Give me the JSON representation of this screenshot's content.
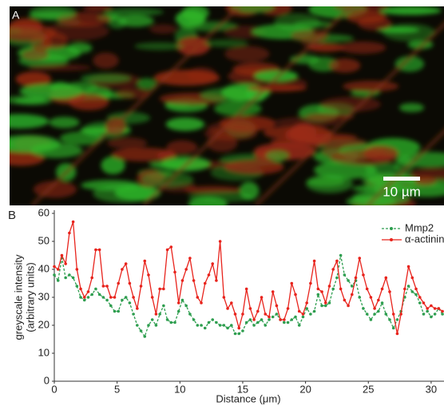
{
  "panel_a": {
    "label": "A",
    "scale_bar": "10 µm"
  },
  "panel_b": {
    "label": "B"
  },
  "chart_data": {
    "type": "line",
    "xlabel": "Distance (μm)",
    "ylabel": [
      "greyscale intensity",
      "(arbitrary units)"
    ],
    "x": [
      0,
      0.3,
      0.6,
      0.9,
      1.2,
      1.5,
      1.8,
      2.1,
      2.4,
      2.7,
      3,
      3.3,
      3.6,
      3.9,
      4.2,
      4.5,
      4.8,
      5.1,
      5.4,
      5.7,
      6,
      6.3,
      6.6,
      6.9,
      7.2,
      7.5,
      7.8,
      8.1,
      8.4,
      8.7,
      9,
      9.3,
      9.6,
      9.9,
      10.2,
      10.5,
      10.8,
      11.1,
      11.4,
      11.7,
      12,
      12.3,
      12.6,
      12.9,
      13.2,
      13.5,
      13.8,
      14.1,
      14.4,
      14.7,
      15,
      15.3,
      15.6,
      15.9,
      16.2,
      16.5,
      16.8,
      17.1,
      17.4,
      17.7,
      18,
      18.3,
      18.6,
      18.9,
      19.2,
      19.5,
      19.8,
      20.1,
      20.4,
      20.7,
      21,
      21.3,
      21.6,
      21.9,
      22.2,
      22.5,
      22.8,
      23.1,
      23.4,
      23.7,
      24,
      24.3,
      24.6,
      24.9,
      25.2,
      25.5,
      25.8,
      26.1,
      26.4,
      26.7,
      27,
      27.3,
      27.6,
      27.9,
      28.2,
      28.5,
      28.8,
      29.1,
      29.4,
      29.7,
      30,
      30.3,
      30.6,
      30.9
    ],
    "series": [
      {
        "name": "Mmp2",
        "color": "#2e9e4f",
        "dashed": true,
        "values": [
          38,
          36,
          44,
          37,
          38,
          37,
          34,
          30,
          29,
          30,
          31,
          33,
          31,
          30,
          29,
          27,
          25,
          25,
          29,
          30,
          28,
          24,
          20,
          18,
          16,
          20,
          22,
          20,
          24,
          27,
          22,
          21,
          21,
          25,
          29,
          27,
          24,
          22,
          20,
          20,
          19,
          21,
          22,
          21,
          20,
          20,
          19,
          20,
          17,
          17,
          18,
          21,
          22,
          20,
          21,
          22,
          20,
          22,
          23,
          24,
          22,
          21,
          21,
          22,
          23,
          20,
          23,
          26,
          24,
          25,
          31,
          27,
          27,
          28,
          33,
          37,
          45,
          38,
          36,
          34,
          36,
          30,
          26,
          24,
          22,
          24,
          25,
          28,
          24,
          22,
          19,
          22,
          25,
          30,
          34,
          32,
          31,
          28,
          24,
          25,
          23,
          24,
          26,
          24
        ]
      },
      {
        "name": "α-actinin",
        "color": "#e8231c",
        "dashed": false,
        "values": [
          41,
          40,
          45,
          42,
          53,
          57,
          40,
          33,
          30,
          32,
          37,
          47,
          47,
          34,
          34,
          30,
          30,
          35,
          40,
          42,
          35,
          30,
          26,
          34,
          43,
          38,
          30,
          24,
          33,
          33,
          47,
          48,
          39,
          28,
          36,
          40,
          44,
          36,
          30,
          28,
          35,
          38,
          42,
          36,
          50,
          30,
          26,
          28,
          24,
          19,
          24,
          33,
          26,
          22,
          25,
          30,
          24,
          23,
          32,
          27,
          22,
          22,
          26,
          35,
          31,
          25,
          24,
          28,
          35,
          43,
          33,
          32,
          28,
          34,
          40,
          43,
          33,
          29,
          27,
          31,
          37,
          44,
          38,
          33,
          30,
          26,
          29,
          33,
          37,
          32,
          24,
          17,
          24,
          33,
          41,
          37,
          33,
          30,
          28,
          26,
          27,
          26,
          26,
          25
        ]
      }
    ],
    "xlim": [
      0,
      31
    ],
    "ylim": [
      0,
      60
    ],
    "xticks": [
      0,
      5,
      10,
      15,
      20,
      25,
      30
    ],
    "yticks": [
      0,
      10,
      20,
      30,
      40,
      50,
      60
    ],
    "grid": false
  }
}
